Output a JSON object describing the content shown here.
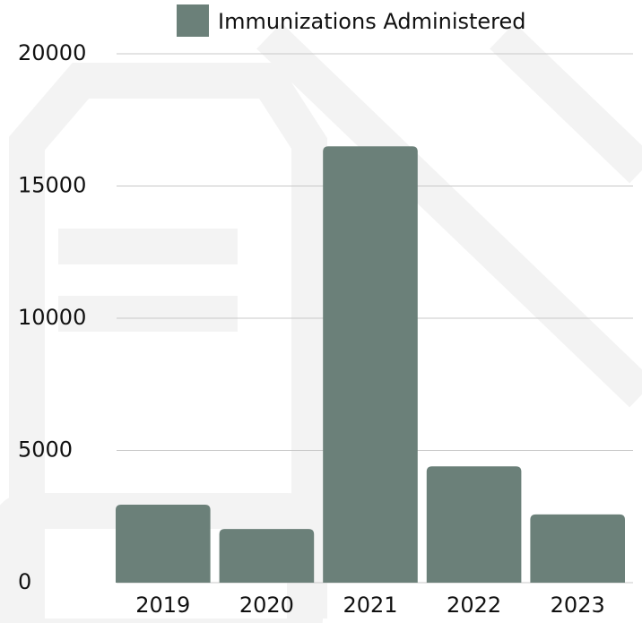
{
  "chart_data": {
    "type": "bar",
    "categories": [
      "2019",
      "2020",
      "2021",
      "2022",
      "2023"
    ],
    "series": [
      {
        "name": "Immunizations Administered",
        "color": "#6b8079",
        "values": [
          2950,
          2030,
          16500,
          4400,
          2580
        ]
      }
    ],
    "ylim": [
      0,
      20000
    ],
    "yticks": [
      0,
      5000,
      10000,
      15000,
      20000
    ],
    "grid": true,
    "legend": "top"
  }
}
